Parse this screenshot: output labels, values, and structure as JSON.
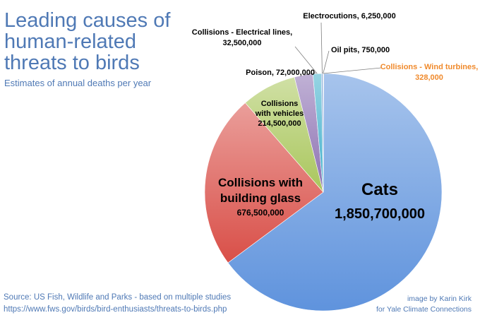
{
  "chart_data": {
    "type": "pie",
    "title": "Leading causes of human-related threats to birds",
    "subtitle": "Estimates of annual deaths per year",
    "slices": [
      {
        "name": "Cats",
        "value": 1850700000,
        "value_label": "1,850,700,000",
        "color": "#5f93dd"
      },
      {
        "name": "Collisions with building glass",
        "value": 676500000,
        "value_label": "676,500,000",
        "color": "#d94f48"
      },
      {
        "name": "Collisions with vehicles",
        "value": 214500000,
        "value_label": "214,500,000",
        "color": "#a9c65c"
      },
      {
        "name": "Poison",
        "value": 72000000,
        "value_label": "72,000,000",
        "color": "#8d72b2"
      },
      {
        "name": "Collisions - Electrical lines",
        "value": 32500000,
        "value_label": "32,500,000",
        "color": "#41b0cc"
      },
      {
        "name": "Electrocutions",
        "value": 6250000,
        "value_label": "6,250,000",
        "color": "#4a7fc4"
      },
      {
        "name": "Oil pits",
        "value": 750000,
        "value_label": "750,000",
        "color": "#c9cfa0"
      },
      {
        "name": "Collisions - Wind turbines",
        "value": 328000,
        "value_label": "328,000",
        "color": "#f08a2c"
      }
    ]
  },
  "labels": {
    "cats_name": "Cats",
    "cats_value": "1,850,700,000",
    "glass_name_1": "Collisions with",
    "glass_name_2": "building glass",
    "glass_value": "676,500,000",
    "vehicles_name_1": "Collisions",
    "vehicles_name_2": "with vehicles",
    "vehicles_value": "214,500,000",
    "poison": "Poison,  72,000,000",
    "electrical_1": "Collisions - Electrical lines,",
    "electrical_2": "32,500,000",
    "electrocutions": "Electrocutions,  6,250,000",
    "oil": "Oil pits,  750,000",
    "wind_1": "Collisions - Wind turbines,",
    "wind_2": "328,000"
  },
  "footer": {
    "source_line1": "Source: US Fish, Wildlife and Parks - based on multiple studies",
    "source_line2": "https://www.fws.gov/birds/bird-enthusiasts/threats-to-birds.php",
    "credit_line1": "image by Karin Kirk",
    "credit_line2": "for Yale Climate Connections"
  }
}
